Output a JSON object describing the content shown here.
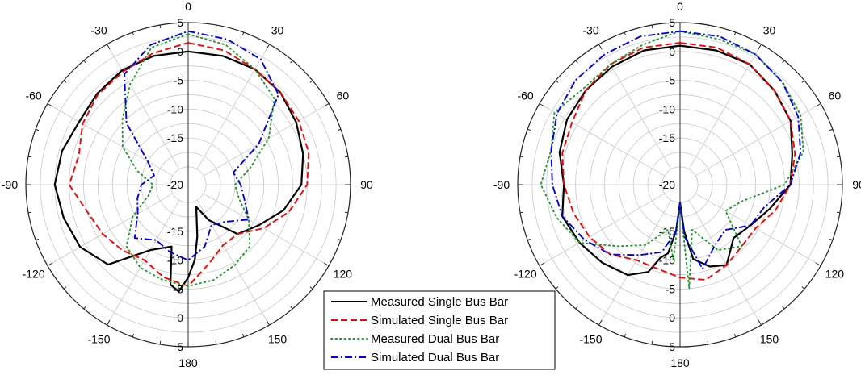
{
  "chart_data": [
    {
      "type": "polar-line",
      "title": "",
      "angle_ticks": [
        "0",
        "30",
        "60",
        "90",
        "120",
        "150",
        "180",
        "-150",
        "-120",
        "-90",
        "-60",
        "-30"
      ],
      "radial_ticks": [
        "5",
        "0",
        "-5",
        "-10",
        "-15",
        "-20",
        "-15",
        "-10",
        "-5",
        "0",
        "5"
      ],
      "rlim": [
        -20,
        5
      ],
      "series": [
        {
          "name": "Measured Single Bus Bar",
          "color": "#000000",
          "dash": "solid",
          "angles": [
            0,
            15,
            30,
            45,
            60,
            75,
            90,
            105,
            120,
            135,
            150,
            160,
            170,
            175,
            180,
            -175,
            -170,
            -165,
            -150,
            -135,
            -120,
            -105,
            -90,
            -75,
            -60,
            -45,
            -30,
            -15,
            0
          ],
          "values": [
            0,
            0,
            0,
            -0.5,
            -1.5,
            -2.5,
            -3.5,
            -6,
            -9,
            -11,
            -16,
            -19,
            -14,
            -10,
            -7,
            -4.5,
            -5.5,
            -12,
            -10,
            -3.5,
            -1.5,
            -0.8,
            0,
            -0.5,
            -1.3,
            -0.8,
            -0.2,
            0,
            0
          ]
        },
        {
          "name": "Simulated Single Bus Bar",
          "color": "#ff0000",
          "dash": "dashed",
          "angles": [
            0,
            15,
            30,
            45,
            60,
            75,
            90,
            105,
            120,
            135,
            150,
            165,
            180,
            -165,
            -150,
            -135,
            -120,
            -105,
            -90,
            -75,
            -60,
            -45,
            -30,
            -15,
            0
          ],
          "values": [
            1.5,
            1,
            0,
            -0.5,
            -1,
            -1.5,
            -2.5,
            -5,
            -8,
            -11,
            -11,
            -9,
            -5.5,
            -6.5,
            -8,
            -7,
            -6,
            -5,
            -2.5,
            -3.5,
            -2,
            -1,
            -0.5,
            0.5,
            1.5
          ]
        },
        {
          "name": "Measured Dual Bus Bar",
          "color": "#1f9b2c",
          "dash": "dotted",
          "angles": [
            0,
            15,
            30,
            45,
            60,
            75,
            90,
            105,
            120,
            135,
            150,
            165,
            180,
            -165,
            -150,
            -135,
            -120,
            -105,
            -90,
            -75,
            -60,
            -45,
            -30,
            -15,
            0
          ],
          "values": [
            3,
            2,
            0,
            -2,
            -7,
            -12,
            -15,
            -14,
            -11,
            -8,
            -7,
            -6,
            -5.5,
            -6,
            -6.5,
            -8,
            -12,
            -16,
            -17,
            -14,
            -10,
            -7,
            -3,
            1.5,
            3
          ]
        },
        {
          "name": "Simulated Dual Bus Bar",
          "color": "#0000ee",
          "dash": "dashdot",
          "angles": [
            0,
            15,
            30,
            45,
            60,
            75,
            90,
            105,
            120,
            135,
            150,
            165,
            180,
            -165,
            -150,
            -135,
            -120,
            -105,
            -90,
            -75,
            -60,
            -45,
            -30,
            -15,
            0
          ],
          "values": [
            3.5,
            3,
            2,
            -1,
            -9,
            -15,
            -14,
            -13,
            -11,
            -14,
            -15,
            -12,
            -10,
            -11,
            -12,
            -10,
            -13,
            -14,
            -15,
            -17,
            -15,
            -8,
            -1,
            2,
            3.5
          ]
        }
      ]
    },
    {
      "type": "polar-line",
      "title": "",
      "angle_ticks": [
        "0",
        "30",
        "60",
        "90",
        "120",
        "150",
        "180",
        "-150",
        "-120",
        "-90",
        "-60",
        "-30"
      ],
      "radial_ticks": [
        "5",
        "0",
        "-5",
        "-10",
        "-15",
        "-20",
        "-15",
        "-10",
        "-5",
        "0",
        "5"
      ],
      "rlim": [
        -20,
        5
      ],
      "series": [
        {
          "name": "Measured Single Bus Bar",
          "color": "#000000",
          "dash": "solid",
          "angles": [
            0,
            15,
            30,
            45,
            60,
            75,
            90,
            105,
            120,
            135,
            150,
            160,
            170,
            175,
            180,
            -175,
            -170,
            -165,
            -160,
            -150,
            -135,
            -120,
            -105,
            -90,
            -75,
            -60,
            -45,
            -30,
            -15,
            0
          ],
          "values": [
            1,
            1,
            1,
            0,
            -1,
            -3,
            -4,
            -7,
            -9,
            -10,
            -7,
            -8,
            -10,
            -15,
            -20,
            -15,
            -11,
            -10,
            -7,
            -5,
            -4,
            -3,
            -2,
            -3,
            -1.5,
            -0.5,
            0,
            0.5,
            1,
            1
          ]
        },
        {
          "name": "Simulated Single Bus Bar",
          "color": "#ff0000",
          "dash": "dashed",
          "angles": [
            0,
            15,
            30,
            45,
            60,
            75,
            90,
            105,
            120,
            135,
            150,
            165,
            180,
            -165,
            -150,
            -135,
            -120,
            -105,
            -90,
            -75,
            -60,
            -45,
            -30,
            -15,
            0
          ],
          "values": [
            1.5,
            1.5,
            1,
            0,
            -1,
            -2.5,
            -4,
            -6,
            -8,
            -8,
            -7,
            -6,
            -7,
            -8,
            -8,
            -6,
            -5,
            -4,
            -3,
            -2,
            -1.5,
            0,
            1,
            1.5,
            1.5
          ]
        },
        {
          "name": "Measured Dual Bus Bar",
          "color": "#1f9b2c",
          "dash": "dotted",
          "angles": [
            0,
            15,
            30,
            45,
            60,
            75,
            90,
            105,
            120,
            135,
            150,
            165,
            175,
            180,
            -175,
            -165,
            -150,
            -135,
            -120,
            -105,
            -90,
            -75,
            -60,
            -45,
            -30,
            -15,
            0
          ],
          "values": [
            3.5,
            3,
            3,
            2,
            1,
            -1,
            -5,
            -12,
            -14,
            -8,
            -10,
            -15,
            -5,
            -20,
            -10,
            -15,
            -11,
            -8,
            -3,
            -1,
            1,
            0,
            2,
            0.5,
            1,
            2,
            3.5
          ]
        },
        {
          "name": "Simulated Dual Bus Bar",
          "color": "#0000ee",
          "dash": "dashdot",
          "angles": [
            0,
            15,
            30,
            45,
            60,
            75,
            90,
            105,
            120,
            135,
            150,
            165,
            175,
            180,
            -175,
            -165,
            -150,
            -135,
            -120,
            -105,
            -90,
            -75,
            -60,
            -45,
            -30,
            -15,
            0
          ],
          "values": [
            3.5,
            3.5,
            3,
            2,
            0.5,
            -1.5,
            -4,
            -8,
            -9,
            -12,
            -11,
            -8,
            -14,
            -20,
            -15,
            -11,
            -9,
            -6,
            -4,
            -2,
            -1,
            0,
            1.5,
            2.5,
            3,
            3.5,
            3.5
          ]
        }
      ]
    }
  ],
  "legend": {
    "entries": [
      {
        "label": "Measured Single Bus Bar",
        "color": "#000000",
        "dash": "solid"
      },
      {
        "label": "Simulated Single Bus Bar",
        "color": "#ff0000",
        "dash": "dashed"
      },
      {
        "label": "Measured Dual Bus Bar",
        "color": "#1f9b2c",
        "dash": "dotted"
      },
      {
        "label": "Simulated Dual Bus Bar",
        "color": "#0000ee",
        "dash": "dashdot"
      }
    ]
  }
}
